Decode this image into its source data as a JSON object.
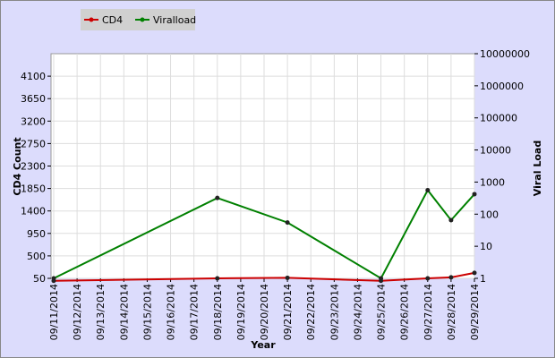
{
  "chart_data": {
    "type": "line",
    "xlabel": "Year",
    "ylabel_left": "CD4 Count",
    "ylabel_right": "Viral Load",
    "x_categories": [
      "09/11/2014",
      "09/12/2014",
      "09/13/2014",
      "09/14/2014",
      "09/15/2014",
      "09/16/2014",
      "09/17/2014",
      "09/18/2014",
      "09/19/2014",
      "09/20/2014",
      "09/21/2014",
      "09/22/2014",
      "09/23/2014",
      "09/24/2014",
      "09/25/2014",
      "09/26/2014",
      "09/27/2014",
      "09/28/2014",
      "09/29/2014"
    ],
    "y_left_ticks": [
      "50",
      "500",
      "950",
      "1400",
      "1850",
      "2300",
      "2750",
      "3200",
      "3650",
      "4100"
    ],
    "y_left_range": [
      50,
      4550
    ],
    "y_right_ticks": [
      "1",
      "10",
      "100",
      "1000",
      "10000",
      "100000",
      "1000000",
      "10000000"
    ],
    "y_right_scale": "log",
    "y_right_range": [
      1,
      10000000
    ],
    "legend_position": "top-left",
    "series": [
      {
        "name": "CD4",
        "axis": "left",
        "color": "#cc0000",
        "points": [
          {
            "x": "09/11/2014",
            "y": 0
          },
          {
            "x": "09/18/2014",
            "y": 50
          },
          {
            "x": "09/21/2014",
            "y": 60
          },
          {
            "x": "09/25/2014",
            "y": 0
          },
          {
            "x": "09/27/2014",
            "y": 50
          },
          {
            "x": "09/28/2014",
            "y": 70
          },
          {
            "x": "09/29/2014",
            "y": 160
          }
        ]
      },
      {
        "name": "Viralload",
        "axis": "right",
        "color": "#008000",
        "points": [
          {
            "x": "09/11/2014",
            "y": 1
          },
          {
            "x": "09/18/2014",
            "y": 320
          },
          {
            "x": "09/21/2014",
            "y": 55
          },
          {
            "x": "09/25/2014",
            "y": 1
          },
          {
            "x": "09/27/2014",
            "y": 560
          },
          {
            "x": "09/28/2014",
            "y": 65
          },
          {
            "x": "09/29/2014",
            "y": 420
          }
        ]
      }
    ]
  }
}
